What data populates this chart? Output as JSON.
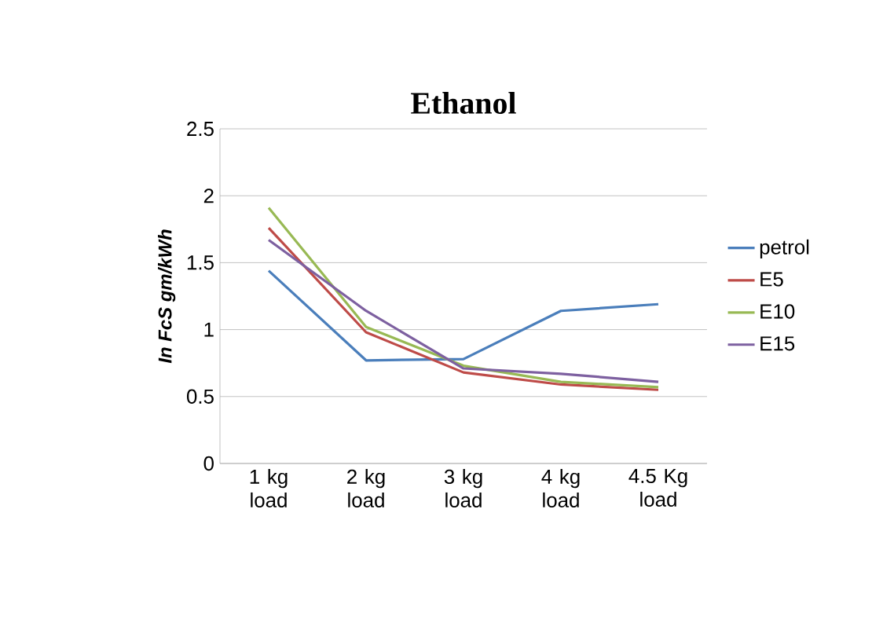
{
  "chart_data": {
    "type": "line",
    "title": "Ethanol",
    "ylabel": "In FcS gm/kWh",
    "categories": [
      "1 kg load",
      "2 kg load",
      "3 kg load",
      "4 kg load",
      "4.5 Kg load"
    ],
    "series": [
      {
        "name": "petrol",
        "color": "#4a7ebb",
        "values": [
          1.44,
          0.77,
          0.78,
          1.14,
          1.19
        ]
      },
      {
        "name": "E5",
        "color": "#be4b48",
        "values": [
          1.76,
          0.98,
          0.68,
          0.59,
          0.55
        ]
      },
      {
        "name": "E10",
        "color": "#98b954",
        "values": [
          1.91,
          1.02,
          0.73,
          0.61,
          0.57
        ]
      },
      {
        "name": "E15",
        "color": "#7d60a0",
        "values": [
          1.67,
          1.14,
          0.71,
          0.67,
          0.61
        ]
      }
    ],
    "ylim": [
      0,
      2.5
    ],
    "yticks": [
      0,
      0.5,
      1,
      1.5,
      2,
      2.5
    ],
    "grid": "y",
    "legend": "right",
    "marker": "none",
    "line_style": "solid"
  }
}
